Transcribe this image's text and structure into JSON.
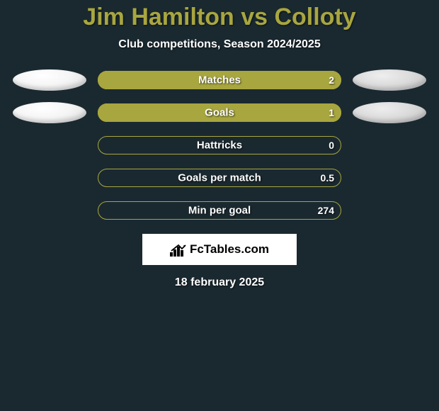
{
  "title": "Jim Hamilton vs Colloty",
  "subtitle": "Club competitions, Season 2024/2025",
  "date": "18 february 2025",
  "logo_text": "FcTables.com",
  "colors": {
    "background": "#1a2930",
    "accent": "#a8a63f",
    "text": "#ffffff",
    "logo_bg": "#ffffff",
    "logo_text": "#000000"
  },
  "avatars": {
    "left_rows": [
      0,
      1
    ],
    "right_rows": [
      0,
      1
    ]
  },
  "stats": [
    {
      "label": "Matches",
      "left_value": "",
      "right_value": "2",
      "left_fill_pct": 45,
      "right_fill_pct": 100
    },
    {
      "label": "Goals",
      "left_value": "",
      "right_value": "1",
      "left_fill_pct": 45,
      "right_fill_pct": 100
    },
    {
      "label": "Hattricks",
      "left_value": "",
      "right_value": "0",
      "left_fill_pct": 0,
      "right_fill_pct": 0
    },
    {
      "label": "Goals per match",
      "left_value": "",
      "right_value": "0.5",
      "left_fill_pct": 0,
      "right_fill_pct": 0
    },
    {
      "label": "Min per goal",
      "left_value": "",
      "right_value": "274",
      "left_fill_pct": 0,
      "right_fill_pct": 0
    }
  ]
}
